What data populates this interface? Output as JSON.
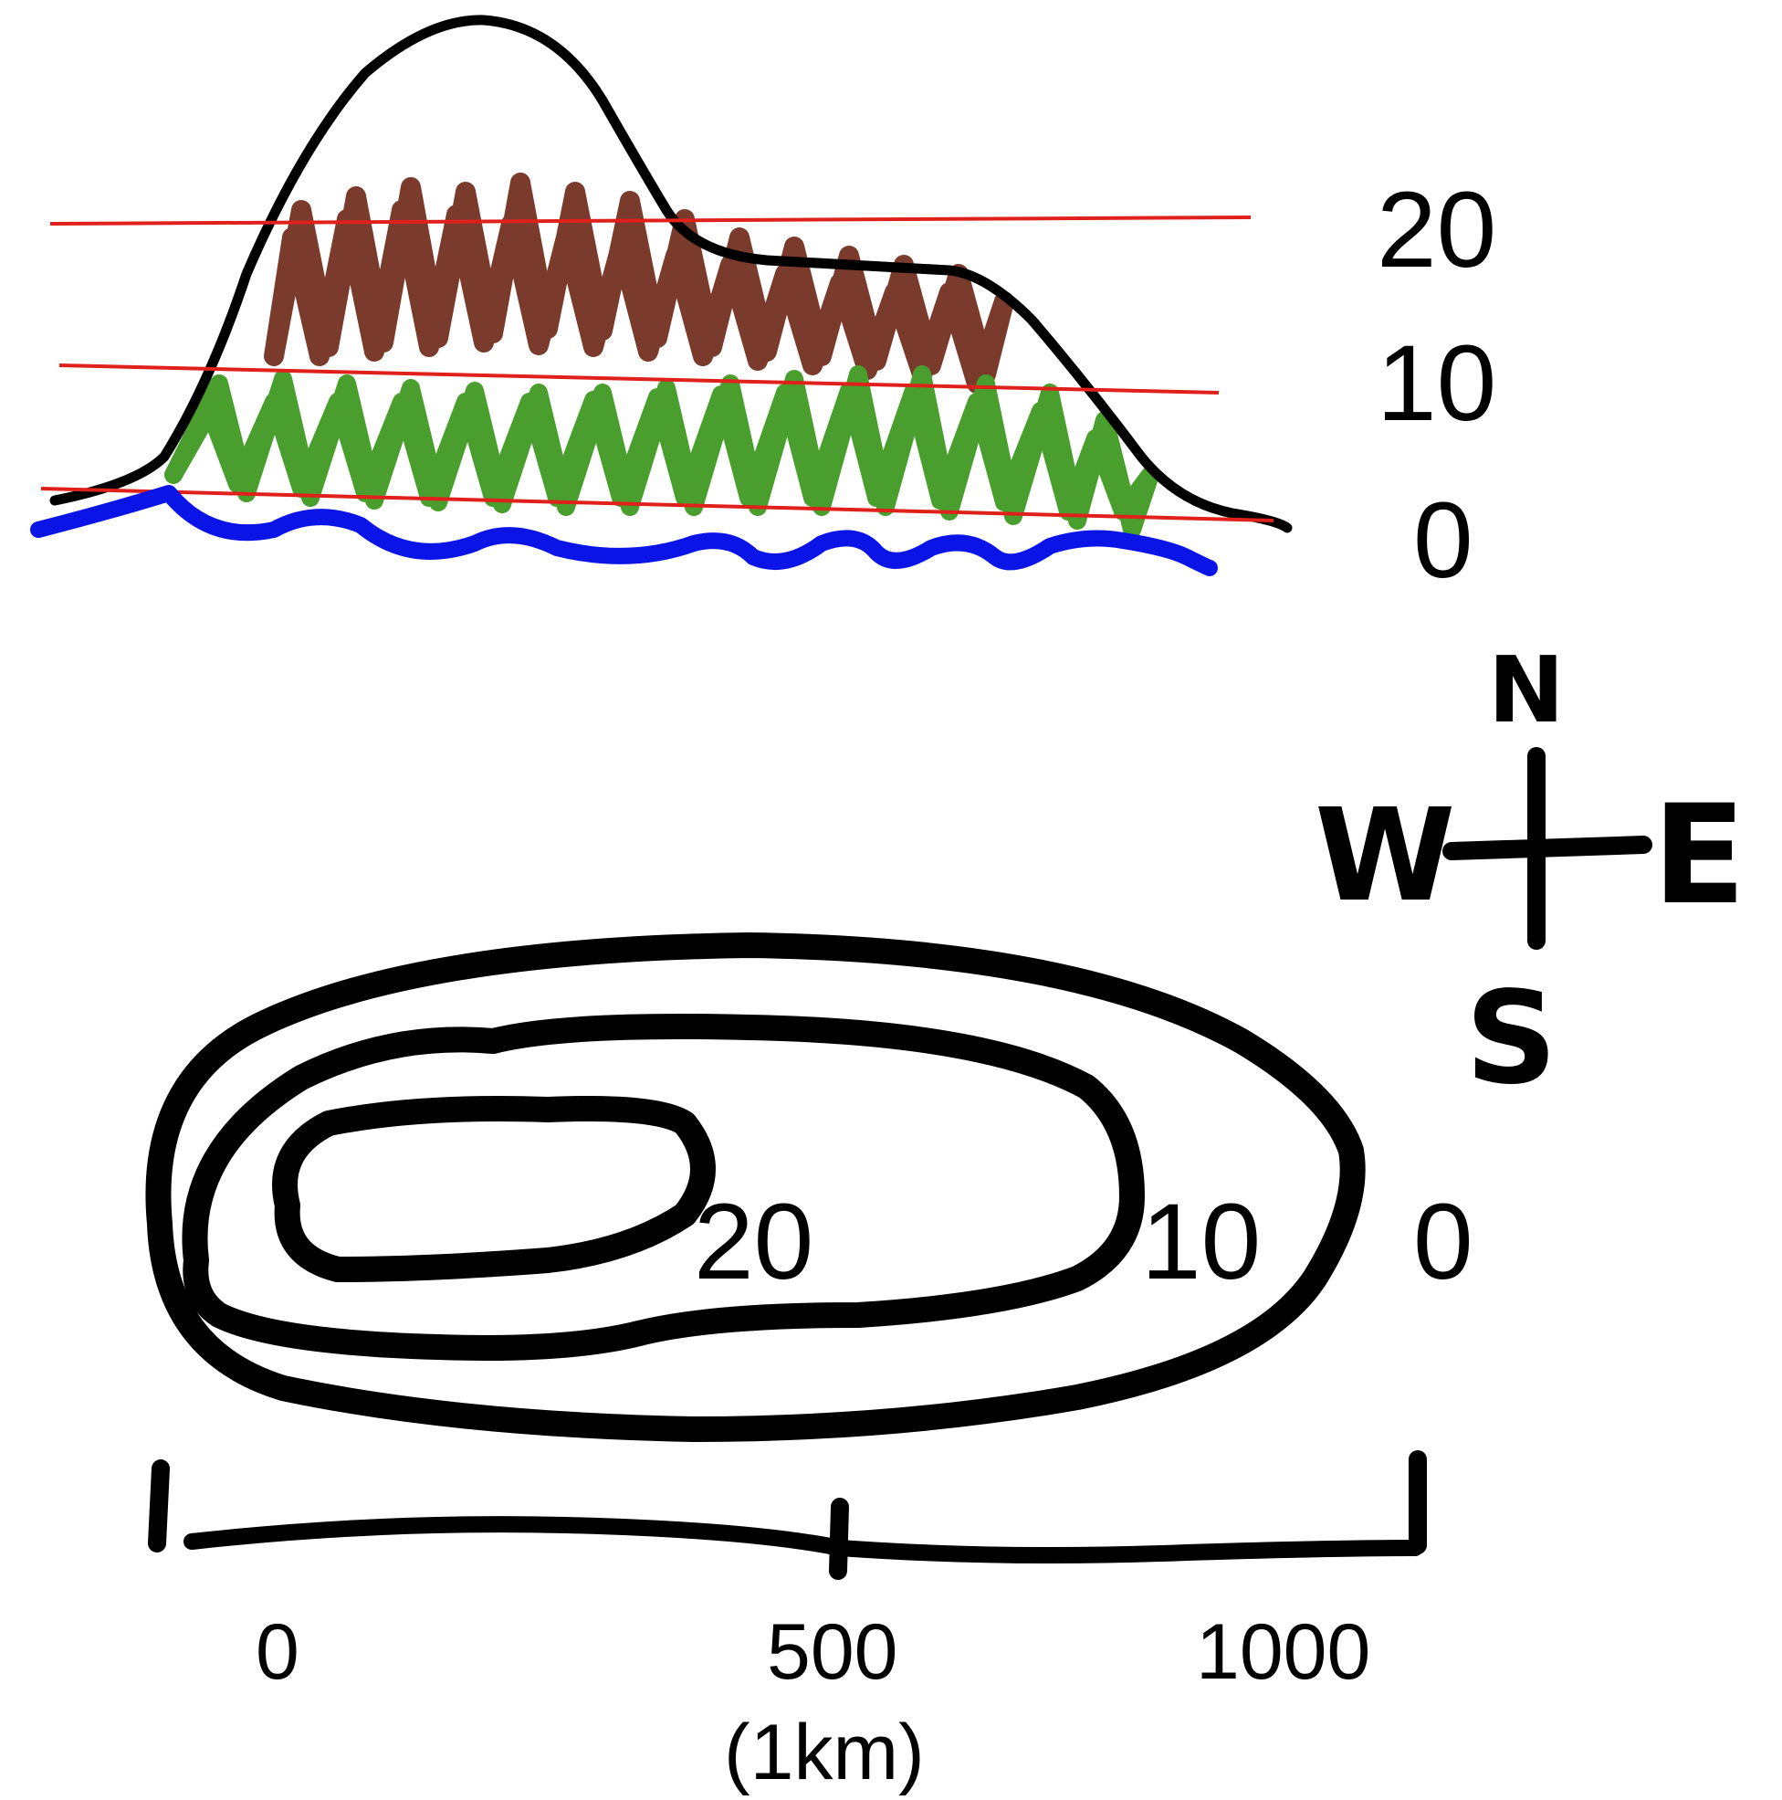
{
  "profile": {
    "elevation_labels": [
      "20",
      "10",
      "0"
    ],
    "colors": {
      "outline": "#000000",
      "contour_line": "#e0201a",
      "upper_slope": "#7a3a2c",
      "lower_slope": "#4a9e2e",
      "water": "#0a14e6"
    }
  },
  "compass": {
    "north": "N",
    "south": "S",
    "east": "E",
    "west": "W"
  },
  "contour_map": {
    "labels": [
      "20",
      "10",
      "0"
    ]
  },
  "scale_bar": {
    "ticks": [
      "0",
      "500",
      "1000"
    ],
    "unit": "(1km)"
  }
}
